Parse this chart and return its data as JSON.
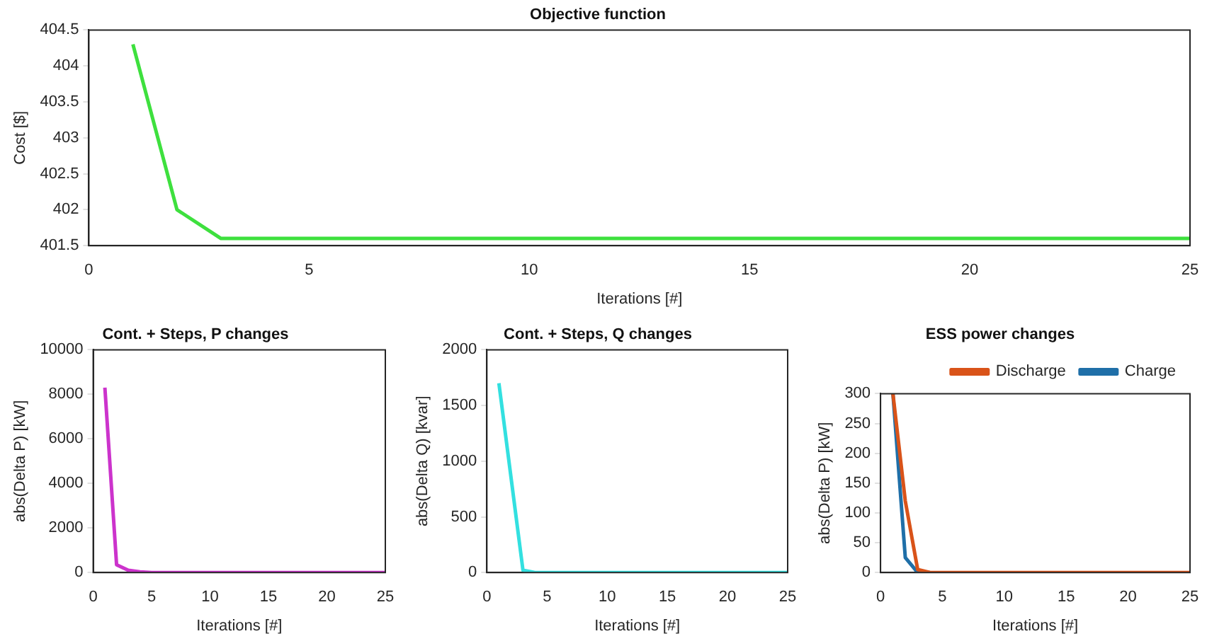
{
  "chart_data": [
    {
      "type": "line",
      "title": "Objective function",
      "xlabel": "Iterations [#]",
      "ylabel": "Cost [$]",
      "x": [
        1,
        2,
        3,
        4,
        5,
        6,
        7,
        8,
        9,
        10,
        11,
        12,
        13,
        14,
        15,
        16,
        17,
        18,
        19,
        20,
        21,
        22,
        23,
        24,
        25
      ],
      "series": [
        {
          "color": "#3ee03e",
          "values": [
            404.3,
            402.0,
            401.6,
            401.6,
            401.6,
            401.6,
            401.6,
            401.6,
            401.6,
            401.6,
            401.6,
            401.6,
            401.6,
            401.6,
            401.6,
            401.6,
            401.6,
            401.6,
            401.6,
            401.6,
            401.6,
            401.6,
            401.6,
            401.6,
            401.6
          ]
        }
      ],
      "xlim": [
        0,
        25
      ],
      "xticks": [
        0,
        5,
        10,
        15,
        20,
        25
      ],
      "ylim": [
        401.5,
        404.5
      ],
      "yticks": [
        401.5,
        402,
        402.5,
        403,
        403.5,
        404,
        404.5
      ],
      "grid": false,
      "legend": false,
      "marker": "none",
      "line_style": "solid"
    },
    {
      "type": "line",
      "title": "Cont. + Steps, P changes",
      "xlabel": "Iterations [#]",
      "ylabel": "abs(Delta P) [kW]",
      "x": [
        1,
        2,
        3,
        4,
        5,
        6,
        7,
        8,
        9,
        10,
        11,
        12,
        13,
        14,
        15,
        16,
        17,
        18,
        19,
        20,
        21,
        22,
        23,
        24,
        25
      ],
      "series": [
        {
          "color": "#cc33cc",
          "values": [
            8300,
            350,
            100,
            30,
            0,
            0,
            0,
            0,
            0,
            0,
            0,
            0,
            0,
            0,
            0,
            0,
            0,
            0,
            0,
            0,
            0,
            0,
            0,
            0,
            0
          ]
        }
      ],
      "xlim": [
        0,
        25
      ],
      "xticks": [
        0,
        5,
        10,
        15,
        20,
        25
      ],
      "ylim": [
        0,
        10000
      ],
      "yticks": [
        0,
        2000,
        4000,
        6000,
        8000,
        10000
      ],
      "grid": false,
      "legend": false,
      "marker": "none",
      "line_style": "solid"
    },
    {
      "type": "line",
      "title": "Cont. + Steps, Q changes",
      "xlabel": "Iterations [#]",
      "ylabel": "abs(Delta Q) [kvar]",
      "x": [
        1,
        2,
        3,
        4,
        5,
        6,
        7,
        8,
        9,
        10,
        11,
        12,
        13,
        14,
        15,
        16,
        17,
        18,
        19,
        20,
        21,
        22,
        23,
        24,
        25
      ],
      "series": [
        {
          "color": "#33e0e0",
          "values": [
            1700,
            860,
            20,
            0,
            0,
            0,
            0,
            0,
            0,
            0,
            0,
            0,
            0,
            0,
            0,
            0,
            0,
            0,
            0,
            0,
            0,
            0,
            0,
            0,
            0
          ]
        }
      ],
      "xlim": [
        0,
        25
      ],
      "xticks": [
        0,
        5,
        10,
        15,
        20,
        25
      ],
      "ylim": [
        0,
        2000
      ],
      "yticks": [
        0,
        500,
        1000,
        1500,
        2000
      ],
      "grid": false,
      "legend": false,
      "marker": "none",
      "line_style": "solid"
    },
    {
      "type": "line",
      "title": "ESS power changes",
      "xlabel": "Iterations [#]",
      "ylabel": "abs(Delta P) [kW]",
      "x": [
        1,
        2,
        3,
        4,
        5,
        6,
        7,
        8,
        9,
        10,
        11,
        12,
        13,
        14,
        15,
        16,
        17,
        18,
        19,
        20,
        21,
        22,
        23,
        24,
        25
      ],
      "series": [
        {
          "name": "Charge",
          "color": "#1f6fa8",
          "values": [
            300,
            25,
            0,
            0,
            null,
            null,
            null,
            null,
            null,
            null,
            null,
            null,
            null,
            null,
            null,
            null,
            null,
            null,
            null,
            null,
            null,
            null,
            null,
            null,
            null
          ]
        },
        {
          "name": "Discharge",
          "color": "#d95319",
          "values": [
            300,
            120,
            5,
            0,
            0,
            0,
            0,
            0,
            0,
            0,
            0,
            0,
            0,
            0,
            0,
            0,
            0,
            0,
            0,
            0,
            0,
            0,
            0,
            0,
            0
          ]
        }
      ],
      "xlim": [
        0,
        25
      ],
      "xticks": [
        0,
        5,
        10,
        15,
        20,
        25
      ],
      "ylim": [
        0,
        300
      ],
      "yticks": [
        0,
        50,
        100,
        150,
        200,
        250,
        300
      ],
      "grid": false,
      "legend": "top right",
      "marker": "none",
      "line_style": "solid"
    }
  ]
}
